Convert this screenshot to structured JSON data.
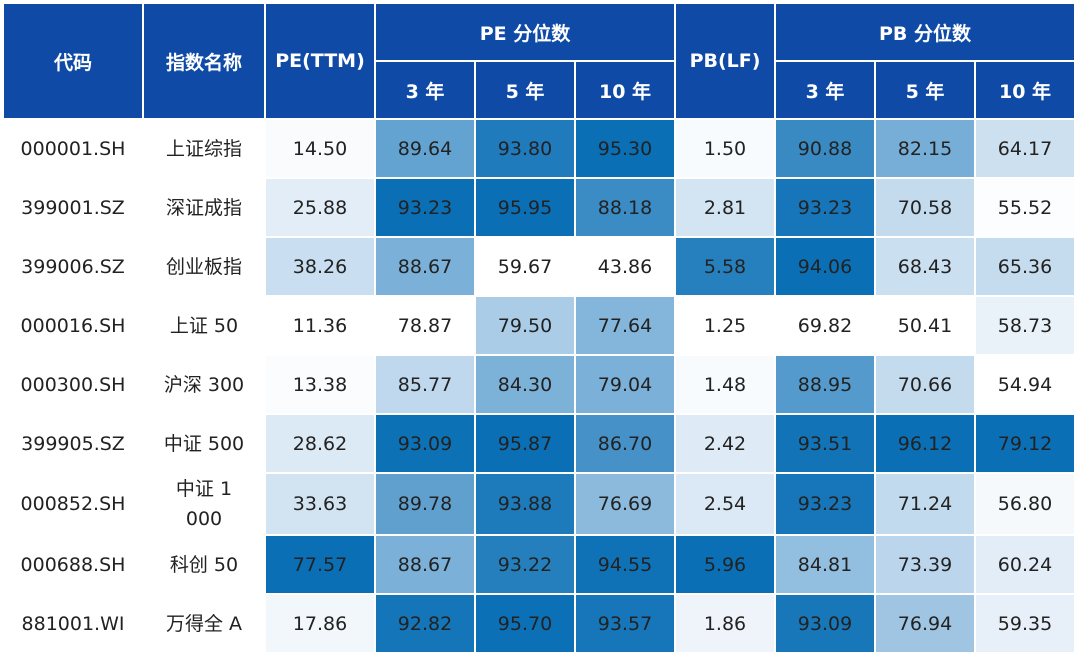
{
  "chart_data": {
    "type": "table",
    "headers": {
      "code": "代码",
      "name": "指数名称",
      "pe_ttm": "PE(TTM)",
      "pe_pct": "PE 分位数",
      "pb_lf": "PB(LF)",
      "pb_pct": "PB 分位数",
      "y3": "3 年",
      "y5": "5 年",
      "y10": "10 年"
    },
    "rows": [
      {
        "code": "000001.SH",
        "name": "上证综指",
        "pe": "14.50",
        "pe3": "89.64",
        "pe5": "93.80",
        "pe10": "95.30",
        "pb": "1.50",
        "pb3": "90.88",
        "pb5": "82.15",
        "pb10": "64.17"
      },
      {
        "code": "399001.SZ",
        "name": "深证成指",
        "pe": "25.88",
        "pe3": "93.23",
        "pe5": "95.95",
        "pe10": "88.18",
        "pb": "2.81",
        "pb3": "93.23",
        "pb5": "70.58",
        "pb10": "55.52"
      },
      {
        "code": "399006.SZ",
        "name": "创业板指",
        "pe": "38.26",
        "pe3": "88.67",
        "pe5": "59.67",
        "pe10": "43.86",
        "pb": "5.58",
        "pb3": "94.06",
        "pb5": "68.43",
        "pb10": "65.36"
      },
      {
        "code": "000016.SH",
        "name": "上证 50",
        "pe": "11.36",
        "pe3": "78.87",
        "pe5": "79.50",
        "pe10": "77.64",
        "pb": "1.25",
        "pb3": "69.82",
        "pb5": "50.41",
        "pb10": "58.73"
      },
      {
        "code": "000300.SH",
        "name": "沪深 300",
        "pe": "13.38",
        "pe3": "85.77",
        "pe5": "84.30",
        "pe10": "79.04",
        "pb": "1.48",
        "pb3": "88.95",
        "pb5": "70.66",
        "pb10": "54.94"
      },
      {
        "code": "399905.SZ",
        "name": "中证 500",
        "pe": "28.62",
        "pe3": "93.09",
        "pe5": "95.87",
        "pe10": "86.70",
        "pb": "2.42",
        "pb3": "93.51",
        "pb5": "96.12",
        "pb10": "79.12"
      },
      {
        "code": "000852.SH",
        "name": "中证 1000",
        "pe": "33.63",
        "pe3": "89.78",
        "pe5": "93.88",
        "pe10": "76.69",
        "pb": "2.54",
        "pb3": "93.23",
        "pb5": "71.24",
        "pb10": "56.80"
      },
      {
        "code": "000688.SH",
        "name": "科创 50",
        "pe": "77.57",
        "pe3": "88.67",
        "pe5": "93.22",
        "pe10": "94.55",
        "pb": "5.96",
        "pb3": "84.81",
        "pb5": "73.39",
        "pb10": "60.24"
      },
      {
        "code": "881001.WI",
        "name": "万得全 A",
        "pe": "17.86",
        "pe3": "92.82",
        "pe5": "95.70",
        "pe10": "93.57",
        "pb": "1.86",
        "pb3": "93.09",
        "pb5": "76.94",
        "pb10": "59.35"
      }
    ]
  },
  "palette": {
    "header_bg": "#0f4aa6",
    "scale_low": "#ffffff",
    "scale_high": "#0a6fb5"
  }
}
